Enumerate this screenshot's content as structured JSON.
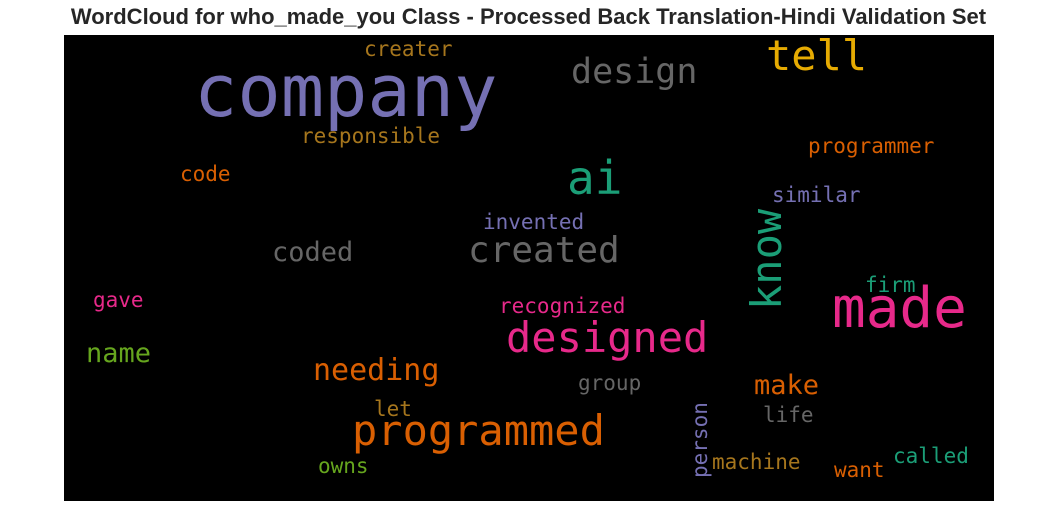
{
  "chart_data": {
    "type": "wordcloud",
    "title": "WordCloud for who_made_you Class - Processed Back Translation-Hindi Validation Set",
    "background": "#000000",
    "palette": "Dark2",
    "words": [
      {
        "text": "company",
        "color": "#7570b3",
        "orientation": "horizontal"
      },
      {
        "text": "made",
        "color": "#e7298a",
        "orientation": "horizontal"
      },
      {
        "text": "designed",
        "color": "#e7298a",
        "orientation": "horizontal"
      },
      {
        "text": "programmed",
        "color": "#d95f02",
        "orientation": "horizontal"
      },
      {
        "text": "created",
        "color": "#666666",
        "orientation": "horizontal"
      },
      {
        "text": "know",
        "color": "#1b9e77",
        "orientation": "vertical"
      },
      {
        "text": "ai",
        "color": "#1b9e77",
        "orientation": "horizontal"
      },
      {
        "text": "tell",
        "color": "#e6ab02",
        "orientation": "horizontal"
      },
      {
        "text": "design",
        "color": "#666666",
        "orientation": "horizontal"
      },
      {
        "text": "coded",
        "color": "#666666",
        "orientation": "horizontal"
      },
      {
        "text": "needing",
        "color": "#d95f02",
        "orientation": "horizontal"
      },
      {
        "text": "make",
        "color": "#d95f02",
        "orientation": "horizontal"
      },
      {
        "text": "name",
        "color": "#66a61e",
        "orientation": "horizontal"
      },
      {
        "text": "programmer",
        "color": "#d95f02",
        "orientation": "horizontal"
      },
      {
        "text": "responsible",
        "color": "#a6761d",
        "orientation": "horizontal"
      },
      {
        "text": "creater",
        "color": "#a6761d",
        "orientation": "horizontal"
      },
      {
        "text": "invented",
        "color": "#7570b3",
        "orientation": "horizontal"
      },
      {
        "text": "similar",
        "color": "#7570b3",
        "orientation": "horizontal"
      },
      {
        "text": "recognized",
        "color": "#e7298a",
        "orientation": "horizontal"
      },
      {
        "text": "machine",
        "color": "#a6761d",
        "orientation": "horizontal"
      },
      {
        "text": "person",
        "color": "#7570b3",
        "orientation": "vertical"
      },
      {
        "text": "called",
        "color": "#1b9e77",
        "orientation": "horizontal"
      },
      {
        "text": "code",
        "color": "#d95f02",
        "orientation": "horizontal"
      },
      {
        "text": "gave",
        "color": "#e7298a",
        "orientation": "horizontal"
      },
      {
        "text": "firm",
        "color": "#1b9e77",
        "orientation": "horizontal"
      },
      {
        "text": "group",
        "color": "#666666",
        "orientation": "horizontal"
      },
      {
        "text": "life",
        "color": "#666666",
        "orientation": "horizontal"
      },
      {
        "text": "let",
        "color": "#a6761d",
        "orientation": "horizontal"
      },
      {
        "text": "owns",
        "color": "#66a61e",
        "orientation": "horizontal"
      },
      {
        "text": "want",
        "color": "#d95f02",
        "orientation": "horizontal"
      }
    ]
  }
}
